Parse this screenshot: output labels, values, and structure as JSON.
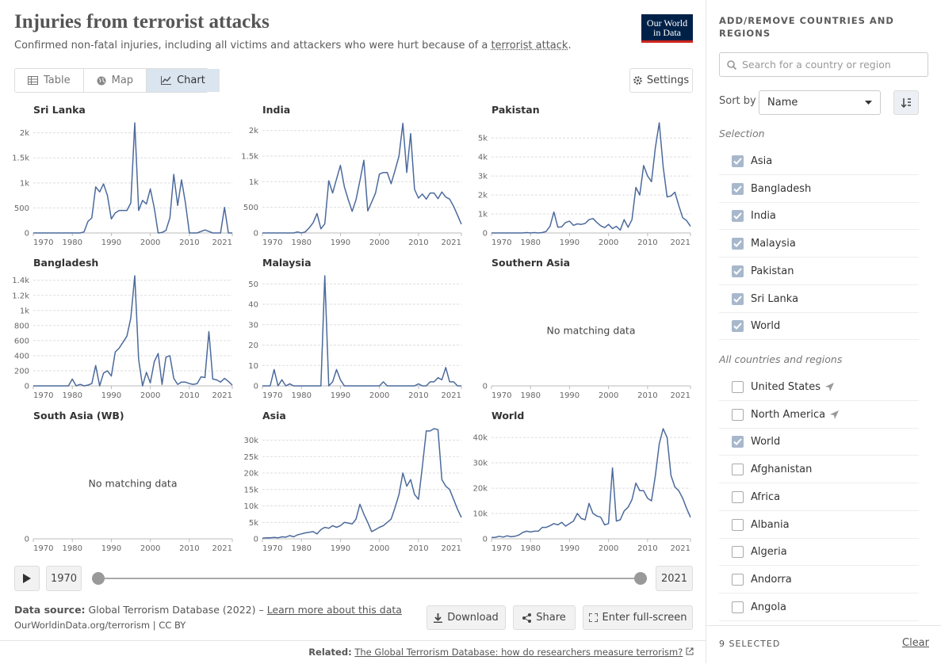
{
  "header": {
    "title": "Injuries from terrorist attacks",
    "subtitle": "Confirmed non-fatal injuries, including all victims and attackers who were hurt because of a ",
    "subtitle_link": "terrorist attack",
    "subtitle_end": ".",
    "logo": [
      "Our World",
      "in Data"
    ]
  },
  "tabs": {
    "items": [
      "Table",
      "Map",
      "Chart"
    ],
    "active": 2
  },
  "settings": "Settings",
  "chart_data": [
    {
      "type": "line",
      "title": "Sri Lanka",
      "color": "#4c6a9c",
      "grid": true,
      "xlim": [
        1970,
        2021
      ],
      "xticks": [
        1970,
        1980,
        1990,
        2000,
        2010,
        2021
      ],
      "ylim": [
        0,
        2200
      ],
      "yticks": [
        0,
        500,
        {
          "value": 1000,
          "label": "1k"
        },
        {
          "value": 1500,
          "label": "1.5k"
        },
        {
          "value": 2000,
          "label": "2k"
        }
      ],
      "x": [
        1970,
        1971,
        1972,
        1973,
        1974,
        1975,
        1976,
        1977,
        1978,
        1979,
        1980,
        1981,
        1982,
        1983,
        1984,
        1985,
        1986,
        1987,
        1988,
        1989,
        1990,
        1991,
        1992,
        1993,
        1994,
        1995,
        1996,
        1997,
        1998,
        1999,
        2000,
        2001,
        2002,
        2003,
        2004,
        2005,
        2006,
        2007,
        2008,
        2009,
        2010,
        2011,
        2012,
        2013,
        2014,
        2015,
        2016,
        2017,
        2018,
        2019,
        2020,
        2021
      ],
      "values": [
        0,
        0,
        0,
        0,
        0,
        0,
        0,
        0,
        0,
        0,
        0,
        0,
        0,
        20,
        230,
        300,
        920,
        820,
        980,
        750,
        280,
        400,
        450,
        450,
        450,
        600,
        2200,
        450,
        650,
        580,
        880,
        500,
        0,
        10,
        50,
        300,
        1170,
        550,
        1060,
        600,
        0,
        0,
        0,
        30,
        60,
        30,
        0,
        0,
        0,
        510,
        0,
        0
      ]
    },
    {
      "type": "line",
      "title": "India",
      "color": "#4c6a9c",
      "grid": true,
      "xlim": [
        1970,
        2021
      ],
      "xticks": [
        1970,
        1980,
        1990,
        2000,
        2010,
        2021
      ],
      "ylim": [
        0,
        2150
      ],
      "yticks": [
        0,
        500,
        {
          "value": 1000,
          "label": "1k"
        },
        {
          "value": 1500,
          "label": "1.5k"
        },
        {
          "value": 2000,
          "label": "2k"
        }
      ],
      "x": [
        1970,
        1971,
        1972,
        1973,
        1974,
        1975,
        1976,
        1977,
        1978,
        1979,
        1980,
        1981,
        1982,
        1983,
        1984,
        1985,
        1986,
        1987,
        1988,
        1989,
        1990,
        1991,
        1992,
        1993,
        1994,
        1995,
        1996,
        1997,
        1998,
        1999,
        2000,
        2001,
        2002,
        2003,
        2004,
        2005,
        2006,
        2007,
        2008,
        2009,
        2010,
        2011,
        2012,
        2013,
        2014,
        2015,
        2016,
        2017,
        2018,
        2019,
        2020,
        2021
      ],
      "values": [
        0,
        0,
        0,
        0,
        0,
        0,
        0,
        0,
        0,
        20,
        0,
        20,
        100,
        200,
        380,
        80,
        180,
        1020,
        780,
        1050,
        1320,
        900,
        650,
        420,
        650,
        1020,
        1420,
        430,
        600,
        780,
        1150,
        1180,
        1180,
        960,
        1220,
        1500,
        2140,
        1180,
        1940,
        850,
        680,
        760,
        660,
        780,
        780,
        670,
        800,
        700,
        660,
        520,
        350,
        170
      ]
    },
    {
      "type": "line",
      "title": "Pakistan",
      "color": "#4c6a9c",
      "grid": true,
      "xlim": [
        1970,
        2021
      ],
      "xticks": [
        1970,
        1980,
        1990,
        2000,
        2010,
        2021
      ],
      "ylim": [
        0,
        5800
      ],
      "yticks": [
        0,
        {
          "value": 1000,
          "label": "1k"
        },
        {
          "value": 2000,
          "label": "2k"
        },
        {
          "value": 3000,
          "label": "3k"
        },
        {
          "value": 4000,
          "label": "4k"
        },
        {
          "value": 5000,
          "label": "5k"
        }
      ],
      "x": [
        1970,
        1971,
        1972,
        1973,
        1974,
        1975,
        1976,
        1977,
        1978,
        1979,
        1980,
        1981,
        1982,
        1983,
        1984,
        1985,
        1986,
        1987,
        1988,
        1989,
        1990,
        1991,
        1992,
        1993,
        1994,
        1995,
        1996,
        1997,
        1998,
        1999,
        2000,
        2001,
        2002,
        2003,
        2004,
        2005,
        2006,
        2007,
        2008,
        2009,
        2010,
        2011,
        2012,
        2013,
        2014,
        2015,
        2016,
        2017,
        2018,
        2019,
        2020,
        2021
      ],
      "values": [
        0,
        0,
        0,
        0,
        0,
        0,
        0,
        0,
        0,
        20,
        0,
        20,
        0,
        20,
        80,
        350,
        1100,
        300,
        320,
        550,
        620,
        400,
        480,
        450,
        500,
        700,
        760,
        550,
        380,
        280,
        450,
        230,
        350,
        150,
        700,
        300,
        700,
        2400,
        2000,
        3550,
        3000,
        2700,
        4500,
        5800,
        3500,
        1900,
        1950,
        2150,
        1450,
        800,
        650,
        350
      ]
    },
    {
      "type": "line",
      "title": "Bangladesh",
      "color": "#4c6a9c",
      "grid": true,
      "xlim": [
        1970,
        2021
      ],
      "xticks": [
        1970,
        1980,
        1990,
        2000,
        2010,
        2021
      ],
      "ylim": [
        0,
        1460
      ],
      "yticks": [
        0,
        200,
        400,
        600,
        800,
        {
          "value": 1000,
          "label": "1k"
        },
        {
          "value": 1200,
          "label": "1.2k"
        },
        {
          "value": 1400,
          "label": "1.4k"
        }
      ],
      "x": [
        1970,
        1971,
        1972,
        1973,
        1974,
        1975,
        1976,
        1977,
        1978,
        1979,
        1980,
        1981,
        1982,
        1983,
        1984,
        1985,
        1986,
        1987,
        1988,
        1989,
        1990,
        1991,
        1992,
        1993,
        1994,
        1995,
        1996,
        1997,
        1998,
        1999,
        2000,
        2001,
        2002,
        2003,
        2004,
        2005,
        2006,
        2007,
        2008,
        2009,
        2010,
        2011,
        2012,
        2013,
        2014,
        2015,
        2016,
        2017,
        2018,
        2019,
        2020,
        2021
      ],
      "values": [
        0,
        0,
        0,
        0,
        0,
        0,
        0,
        0,
        0,
        0,
        90,
        0,
        20,
        0,
        10,
        30,
        270,
        0,
        170,
        200,
        130,
        450,
        500,
        580,
        660,
        900,
        1460,
        350,
        0,
        180,
        40,
        320,
        430,
        20,
        380,
        400,
        100,
        20,
        50,
        50,
        30,
        20,
        30,
        120,
        110,
        720,
        90,
        80,
        50,
        100,
        60,
        10
      ]
    },
    {
      "type": "line",
      "title": "Malaysia",
      "color": "#4c6a9c",
      "grid": true,
      "xlim": [
        1970,
        2021
      ],
      "xticks": [
        1970,
        1980,
        1990,
        2000,
        2010,
        2021
      ],
      "ylim": [
        0,
        54
      ],
      "yticks": [
        0,
        10,
        20,
        30,
        40,
        50
      ],
      "x": [
        1970,
        1971,
        1972,
        1973,
        1974,
        1975,
        1976,
        1977,
        1978,
        1979,
        1980,
        1981,
        1982,
        1983,
        1984,
        1985,
        1986,
        1987,
        1988,
        1989,
        1990,
        1991,
        1992,
        1993,
        1994,
        1995,
        1996,
        1997,
        1998,
        1999,
        2000,
        2001,
        2002,
        2003,
        2004,
        2005,
        2006,
        2007,
        2008,
        2009,
        2010,
        2011,
        2012,
        2013,
        2014,
        2015,
        2016,
        2017,
        2018,
        2019,
        2020,
        2021
      ],
      "values": [
        0,
        0,
        0,
        8,
        0,
        3,
        0,
        1,
        0,
        0,
        0,
        0,
        0,
        0,
        0,
        0,
        54,
        0,
        2,
        8,
        3,
        0,
        0,
        0,
        0,
        0,
        0,
        0,
        0,
        0,
        0,
        2,
        0,
        0,
        0,
        0,
        0,
        0,
        0,
        0,
        1,
        0,
        0,
        2,
        2,
        4,
        3,
        9,
        2,
        2,
        0,
        0
      ]
    },
    {
      "type": "line",
      "title": "Southern Asia",
      "note": "No matching data",
      "grid": true,
      "xlim": [
        1970,
        2021
      ],
      "xticks": [
        1970,
        1980,
        1990,
        2000,
        2010,
        2021
      ],
      "yticks": [
        0
      ]
    },
    {
      "type": "line",
      "title": "South Asia (WB)",
      "note": "No matching data",
      "grid": true,
      "xlim": [
        1970,
        2021
      ],
      "xticks": [
        1970,
        1980,
        1990,
        2000,
        2010,
        2021
      ],
      "yticks": [
        0
      ]
    },
    {
      "type": "line",
      "title": "Asia",
      "color": "#4c6a9c",
      "grid": true,
      "xlim": [
        1970,
        2021
      ],
      "xticks": [
        1970,
        1980,
        1990,
        2000,
        2010,
        2021
      ],
      "ylim": [
        0,
        33500
      ],
      "yticks": [
        0,
        {
          "value": 5000,
          "label": "5k"
        },
        {
          "value": 10000,
          "label": "10k"
        },
        {
          "value": 15000,
          "label": "15k"
        },
        {
          "value": 20000,
          "label": "20k"
        },
        {
          "value": 25000,
          "label": "25k"
        },
        {
          "value": 30000,
          "label": "30k"
        }
      ],
      "x": [
        1970,
        1971,
        1972,
        1973,
        1974,
        1975,
        1976,
        1977,
        1978,
        1979,
        1980,
        1981,
        1982,
        1983,
        1984,
        1985,
        1986,
        1987,
        1988,
        1989,
        1990,
        1991,
        1992,
        1993,
        1994,
        1995,
        1996,
        1997,
        1998,
        1999,
        2000,
        2001,
        2002,
        2003,
        2004,
        2005,
        2006,
        2007,
        2008,
        2009,
        2010,
        2011,
        2012,
        2013,
        2014,
        2015,
        2016,
        2017,
        2018,
        2019,
        2020,
        2021
      ],
      "values": [
        200,
        300,
        300,
        400,
        300,
        600,
        500,
        1000,
        600,
        1200,
        1500,
        1800,
        2000,
        2200,
        1500,
        2800,
        3500,
        3200,
        4000,
        3500,
        4000,
        5000,
        4800,
        4500,
        6000,
        10500,
        7500,
        5000,
        2200,
        2800,
        3500,
        4000,
        5000,
        6000,
        9500,
        13500,
        20000,
        16000,
        18000,
        13500,
        12000,
        22000,
        32800,
        32800,
        33500,
        33200,
        18000,
        16000,
        15000,
        12000,
        9000,
        6500
      ]
    },
    {
      "type": "line",
      "title": "World",
      "color": "#4c6a9c",
      "grid": true,
      "xlim": [
        1970,
        2021
      ],
      "xticks": [
        1970,
        1980,
        1990,
        2000,
        2010,
        2021
      ],
      "ylim": [
        0,
        43500
      ],
      "yticks": [
        0,
        {
          "value": 10000,
          "label": "10k"
        },
        {
          "value": 20000,
          "label": "20k"
        },
        {
          "value": 30000,
          "label": "30k"
        },
        {
          "value": 40000,
          "label": "40k"
        }
      ],
      "x": [
        1970,
        1971,
        1972,
        1973,
        1974,
        1975,
        1976,
        1977,
        1978,
        1979,
        1980,
        1981,
        1982,
        1983,
        1984,
        1985,
        1986,
        1987,
        1988,
        1989,
        1990,
        1991,
        1992,
        1993,
        1994,
        1995,
        1996,
        1997,
        1998,
        1999,
        2000,
        2001,
        2002,
        2003,
        2004,
        2005,
        2006,
        2007,
        2008,
        2009,
        2010,
        2011,
        2012,
        2013,
        2014,
        2015,
        2016,
        2017,
        2018,
        2019,
        2020,
        2021
      ],
      "values": [
        500,
        600,
        1000,
        700,
        1200,
        800,
        1000,
        1500,
        2500,
        3000,
        2700,
        3000,
        3000,
        4500,
        4500,
        5200,
        6000,
        5500,
        6500,
        5000,
        6000,
        7000,
        10000,
        8000,
        7500,
        14000,
        10000,
        9000,
        8500,
        5500,
        6000,
        28000,
        7000,
        7500,
        11000,
        12500,
        15500,
        22000,
        19000,
        19000,
        16000,
        15000,
        25000,
        37500,
        43500,
        40000,
        25000,
        20500,
        19000,
        16000,
        12000,
        8500
      ]
    }
  ],
  "timeline": {
    "start": "1970",
    "end": "2021"
  },
  "footer": {
    "source_label": "Data source:",
    "source": "Global Terrorism Database (2022) –",
    "source_link": "Learn more about this data",
    "url": "OurWorldinData.org/terrorism | CC BY",
    "buttons": [
      "Download",
      "Share",
      "Enter full-screen"
    ],
    "related_label": "Related:",
    "related_link": "The Global Terrorism Database: how do researchers measure terrorism?"
  },
  "sidebar": {
    "title": "ADD/REMOVE COUNTRIES AND REGIONS",
    "search_placeholder": "Search for a country or region",
    "sort_label": "Sort by",
    "sort_value": "Name",
    "selection_heading": "Selection",
    "selection": [
      {
        "label": "Asia",
        "checked": true
      },
      {
        "label": "Bangladesh",
        "checked": true
      },
      {
        "label": "India",
        "checked": true
      },
      {
        "label": "Malaysia",
        "checked": true
      },
      {
        "label": "Pakistan",
        "checked": true
      },
      {
        "label": "Sri Lanka",
        "checked": true
      },
      {
        "label": "World",
        "checked": true
      }
    ],
    "all_heading": "All countries and regions",
    "all": [
      {
        "label": "United States",
        "checked": false,
        "located": true
      },
      {
        "label": "North America",
        "checked": false,
        "located": true
      },
      {
        "label": "World",
        "checked": true
      },
      {
        "label": "Afghanistan",
        "checked": false
      },
      {
        "label": "Africa",
        "checked": false
      },
      {
        "label": "Albania",
        "checked": false
      },
      {
        "label": "Algeria",
        "checked": false
      },
      {
        "label": "Andorra",
        "checked": false
      },
      {
        "label": "Angola",
        "checked": false
      }
    ],
    "selected_count": "9 SELECTED",
    "clear": "Clear"
  }
}
